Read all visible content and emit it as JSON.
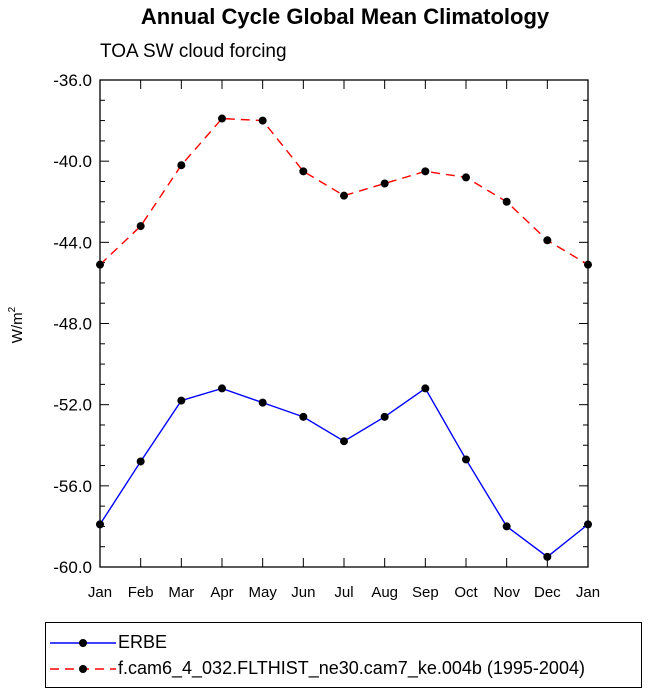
{
  "title": "Annual Cycle Global Mean Climatology",
  "subtitle": "TOA SW cloud forcing",
  "chart_data": {
    "type": "line",
    "title": "Annual Cycle Global Mean Climatology",
    "subtitle": "TOA SW cloud forcing",
    "xlabel": "",
    "ylabel": "W/m",
    "ylabel_superscript": "2",
    "categories": [
      "Jan",
      "Feb",
      "Mar",
      "Apr",
      "May",
      "Jun",
      "Jul",
      "Aug",
      "Sep",
      "Oct",
      "Nov",
      "Dec",
      "Jan"
    ],
    "ylim": [
      -60.0,
      -36.0
    ],
    "yticks": [
      -60.0,
      -56.0,
      -52.0,
      -48.0,
      -44.0,
      -40.0,
      -36.0
    ],
    "ytick_labels": [
      "-60.0",
      "-56.0",
      "-52.0",
      "-48.0",
      "-44.0",
      "-40.0",
      "-36.0"
    ],
    "grid": false,
    "legend_position": "bottom",
    "series": [
      {
        "name": "ERBE",
        "color": "#0000ff",
        "style": "solid",
        "marker": "filled-circle",
        "values": [
          -57.9,
          -54.8,
          -51.8,
          -51.2,
          -51.9,
          -52.6,
          -53.8,
          -52.6,
          -51.2,
          -54.7,
          -58.0,
          -59.5,
          -57.9
        ]
      },
      {
        "name": "f.cam6_4_032.FLTHIST_ne30.cam7_ke.004b (1995-2004)",
        "color": "#ff0000",
        "style": "dashed",
        "marker": "filled-circle",
        "values": [
          -45.1,
          -43.2,
          -40.2,
          -37.9,
          -38.0,
          -40.5,
          -41.7,
          -41.1,
          -40.5,
          -40.8,
          -42.0,
          -43.9,
          -45.1
        ]
      }
    ]
  }
}
